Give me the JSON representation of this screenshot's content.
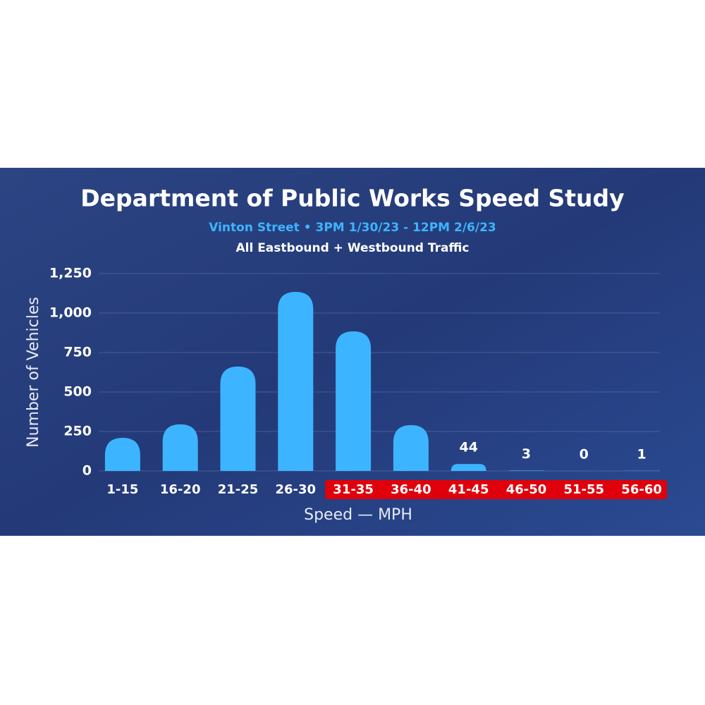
{
  "chart_data": {
    "type": "bar",
    "title": "Department of Public Works Speed Study",
    "subtitle": "Vinton Street • 3PM 1/30/23 - 12PM 2/6/23",
    "subtitle2": "All Eastbound + Westbound Traffic",
    "x_label": "Speed — MPH",
    "y_label": "Number of Vehicles",
    "categories": [
      "1-15",
      "16-20",
      "21-25",
      "26-30",
      "31-35",
      "36-40",
      "41-45",
      "46-50",
      "51-55",
      "56-60"
    ],
    "values": [
      210,
      295,
      661,
      1134,
      884,
      290,
      44,
      3,
      0,
      1
    ],
    "value_labels": [
      null,
      null,
      null,
      null,
      null,
      null,
      "44",
      "3",
      "0",
      "1"
    ],
    "color": "#3db4ff",
    "highlighted": [
      false,
      false,
      false,
      false,
      true,
      true,
      true,
      true,
      true,
      true
    ],
    "highlight_color": "#e0000b",
    "ylim": [
      0,
      1250
    ],
    "yticks": [
      0,
      250,
      500,
      750,
      {
        "value": 1000,
        "label": "1,000"
      },
      {
        "value": 1250,
        "label": "1,250"
      }
    ],
    "grid": true
  }
}
